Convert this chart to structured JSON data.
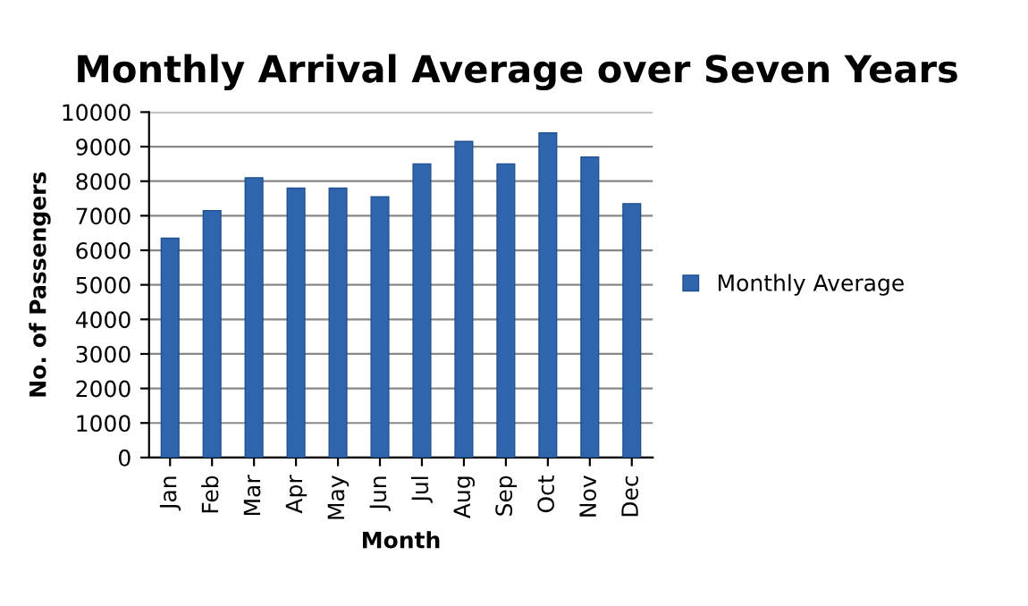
{
  "chart_data": {
    "type": "bar",
    "title": "Monthly Arrival Average over Seven Years",
    "xlabel": "Month",
    "ylabel": "No. of Passengers",
    "categories": [
      "Jan",
      "Feb",
      "Mar",
      "Apr",
      "May",
      "Jun",
      "Jul",
      "Aug",
      "Sep",
      "Oct",
      "Nov",
      "Dec"
    ],
    "series": [
      {
        "name": "Monthly Average",
        "color": "#2f65ad",
        "values": [
          6350,
          7150,
          8100,
          7800,
          7800,
          7550,
          8500,
          9150,
          8500,
          9400,
          8700,
          7350
        ]
      }
    ],
    "ylim": [
      0,
      10000
    ],
    "yticks": [
      0,
      1000,
      2000,
      3000,
      4000,
      5000,
      6000,
      7000,
      8000,
      9000,
      10000
    ],
    "grid": "y",
    "legend": "right"
  }
}
